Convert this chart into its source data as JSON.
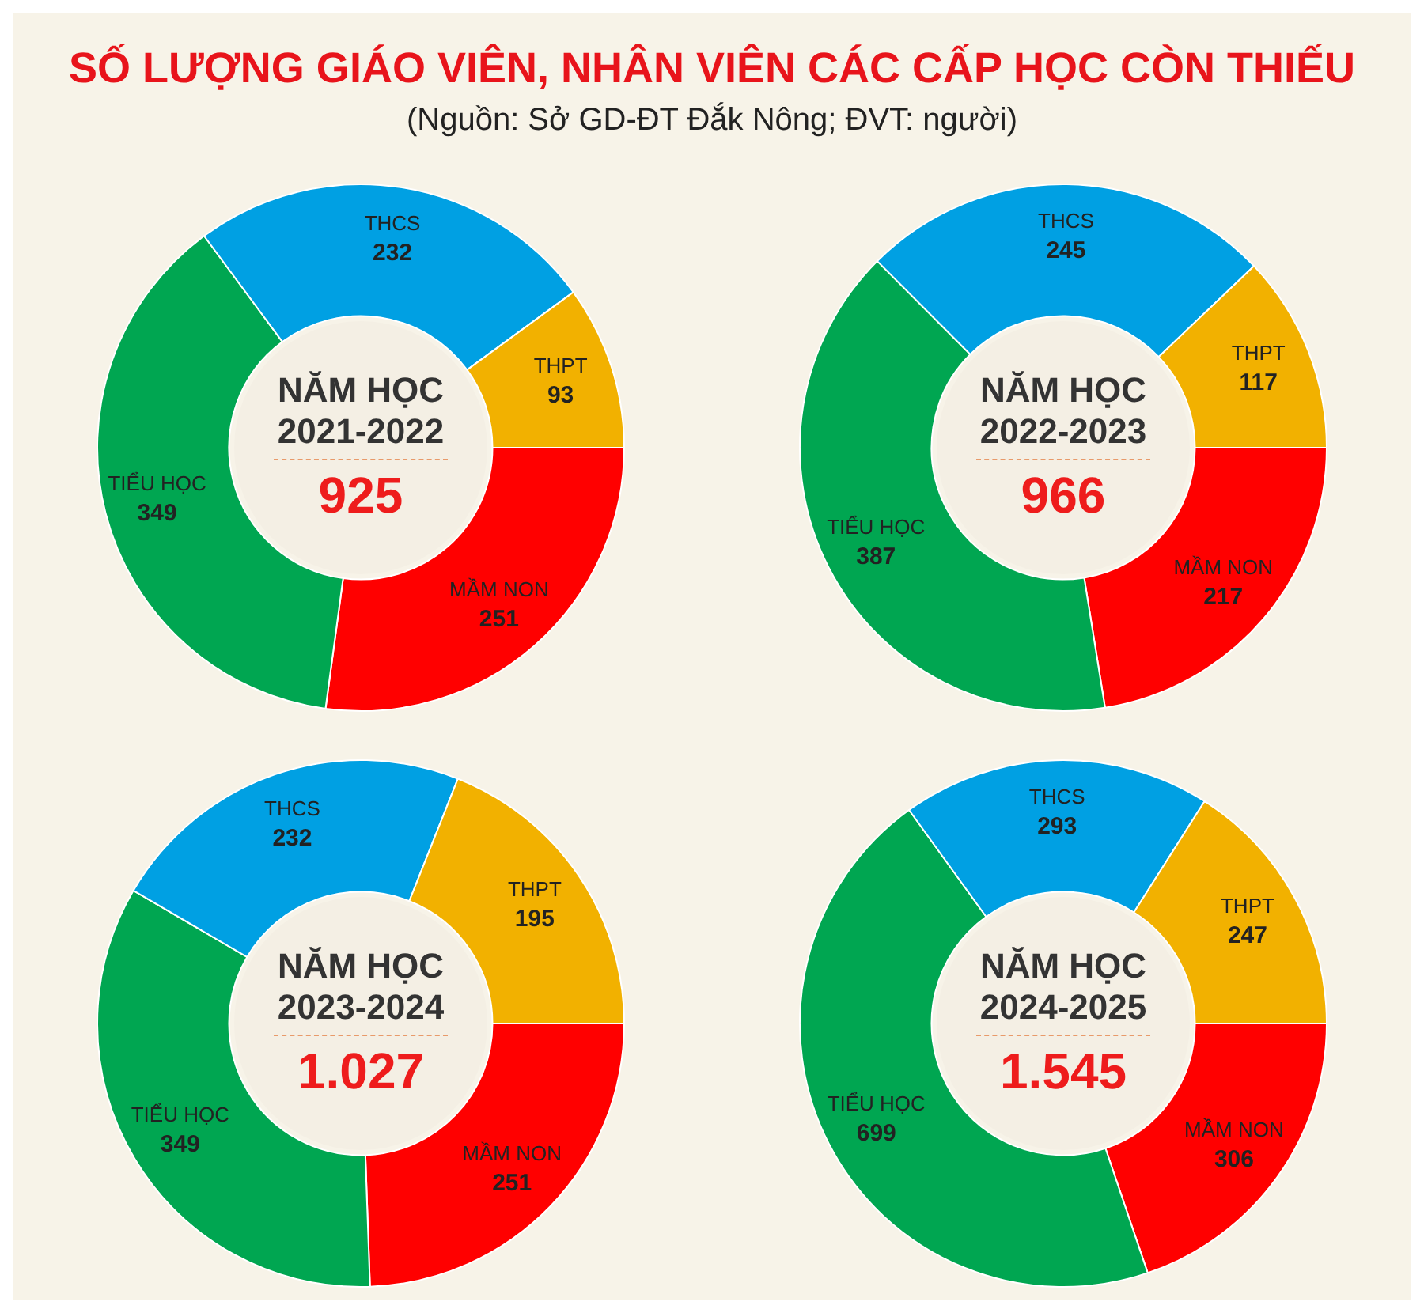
{
  "chart_data": [
    {
      "type": "donut",
      "title": "NĂM HỌC 2021-2022",
      "subtitle": "925",
      "annotations": [
        "SỐ LƯỢNG GIÁO VIÊN, NHÂN VIÊN CÁC CẤP HỌC CÒN THIẾU",
        "(Nguồn: Sở GD-ĐT Đắk Nông; ĐVT: người)"
      ],
      "categories": [
        "MẦM NON",
        "TIỂU HỌC",
        "THCS",
        "THPT"
      ],
      "values": [
        251,
        349,
        232,
        93
      ],
      "colors": [
        "#ff0000",
        "#00a651",
        "#00a0e3",
        "#f2b100"
      ],
      "data_labels": true,
      "legend": false
    },
    {
      "type": "donut",
      "title": "NĂM HỌC 2022-2023",
      "subtitle": "966",
      "categories": [
        "MẦM NON",
        "TIỂU HỌC",
        "THCS",
        "THPT"
      ],
      "values": [
        217,
        387,
        245,
        117
      ],
      "colors": [
        "#ff0000",
        "#00a651",
        "#00a0e3",
        "#f2b100"
      ],
      "data_labels": true,
      "legend": false
    },
    {
      "type": "donut",
      "title": "NĂM HỌC 2023-2024",
      "subtitle": "1.027",
      "categories": [
        "MẦM NON",
        "TIỂU HỌC",
        "THCS",
        "THPT"
      ],
      "values": [
        251,
        349,
        232,
        195
      ],
      "colors": [
        "#ff0000",
        "#00a651",
        "#00a0e3",
        "#f2b100"
      ],
      "data_labels": true,
      "legend": false
    },
    {
      "type": "donut",
      "title": "NĂM HỌC 2024-2025",
      "subtitle": "1.545",
      "categories": [
        "MẦM NON",
        "TIỂU HỌC",
        "THCS",
        "THPT"
      ],
      "values": [
        306,
        699,
        293,
        247
      ],
      "colors": [
        "#ff0000",
        "#00a651",
        "#00a0e3",
        "#f2b100"
      ],
      "data_labels": true,
      "legend": false
    }
  ]
}
